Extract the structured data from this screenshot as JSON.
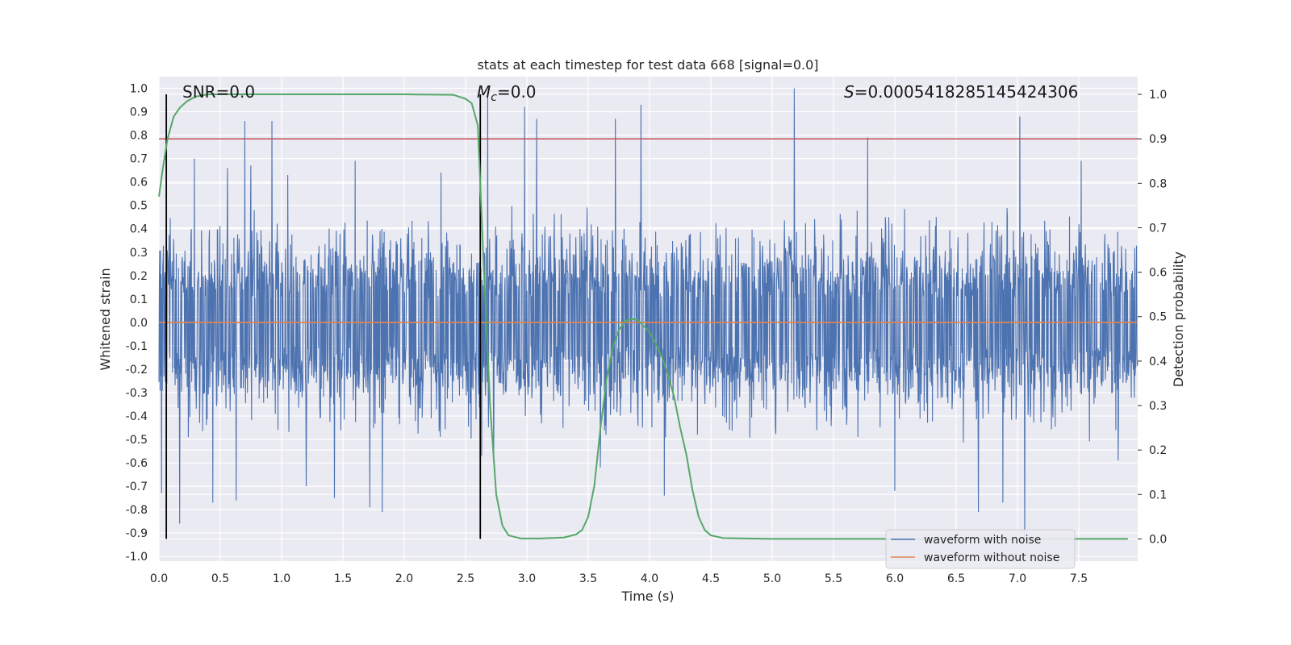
{
  "chart_data": {
    "type": "line",
    "title": "stats at each timestep for test data 668 [signal=0.0]",
    "xlabel": "Time (s)",
    "ylabel_left": "Whitened strain",
    "ylabel_right": "Detection probability",
    "xlim": [
      0.0,
      7.98
    ],
    "ylim_left": [
      -1.02,
      1.05
    ],
    "ylim_right": [
      -0.05,
      1.04
    ],
    "xticks": [
      "0.0",
      "0.5",
      "1.0",
      "1.5",
      "2.0",
      "2.5",
      "3.0",
      "3.5",
      "4.0",
      "4.5",
      "5.0",
      "5.5",
      "6.0",
      "6.5",
      "7.0",
      "7.5"
    ],
    "yticks_left": [
      "-1.0",
      "-0.9",
      "-0.8",
      "-0.7",
      "-0.6",
      "-0.5",
      "-0.4",
      "-0.3",
      "-0.2",
      "-0.1",
      "0.0",
      "0.1",
      "0.2",
      "0.3",
      "0.4",
      "0.5",
      "0.6",
      "0.7",
      "0.8",
      "0.9",
      "1.0"
    ],
    "yticks_right": [
      "0.0",
      "0.1",
      "0.2",
      "0.3",
      "0.4",
      "0.5",
      "0.6",
      "0.7",
      "0.8",
      "0.9",
      "1.0"
    ],
    "grid": true,
    "legend_placement": "lower-right",
    "annotations": {
      "snr": "SNR=0.0",
      "mc_symbol": "M",
      "mc_subscript": "c",
      "mc_value": "=0.0",
      "s_symbol": "S",
      "s_value": "=0.0005418285145424306"
    },
    "series": [
      {
        "name": "waveform with noise",
        "color": "#4c72b0",
        "description_points": "noise envelope approx ±0.4, spikes up to 1.0 and down to -0.9",
        "spikes": [
          [
            0.02,
            -0.73
          ],
          [
            0.17,
            -0.86
          ],
          [
            0.29,
            0.7
          ],
          [
            0.44,
            -0.77
          ],
          [
            0.56,
            0.66
          ],
          [
            0.63,
            -0.76
          ],
          [
            0.7,
            0.86
          ],
          [
            0.75,
            0.67
          ],
          [
            0.92,
            0.86
          ],
          [
            1.05,
            0.63
          ],
          [
            1.2,
            -0.7
          ],
          [
            1.43,
            -0.75
          ],
          [
            1.6,
            0.69
          ],
          [
            1.72,
            -0.79
          ],
          [
            1.82,
            -0.81
          ],
          [
            2.3,
            0.64
          ],
          [
            2.63,
            -0.57
          ],
          [
            2.68,
            0.98
          ],
          [
            2.73,
            -0.57
          ],
          [
            2.98,
            0.92
          ],
          [
            3.08,
            0.87
          ],
          [
            3.6,
            -0.62
          ],
          [
            3.72,
            0.87
          ],
          [
            3.93,
            0.93
          ],
          [
            4.12,
            -0.74
          ],
          [
            5.18,
            1.0
          ],
          [
            5.78,
            0.79
          ],
          [
            6.0,
            -0.72
          ],
          [
            6.68,
            -0.81
          ],
          [
            6.88,
            -0.77
          ],
          [
            7.02,
            0.88
          ],
          [
            7.06,
            -0.92
          ],
          [
            7.52,
            0.69
          ],
          [
            7.82,
            -0.59
          ]
        ]
      },
      {
        "name": "waveform without noise",
        "color": "#dd8452",
        "x": [
          0.0,
          7.98
        ],
        "y": [
          0.0,
          0.0
        ]
      },
      {
        "name": "",
        "axis": "right",
        "color": "#55a868",
        "x": [
          0.0,
          0.03,
          0.07,
          0.12,
          0.17,
          0.23,
          0.3,
          0.4,
          0.6,
          1.0,
          2.0,
          2.4,
          2.5,
          2.55,
          2.6,
          2.65,
          2.7,
          2.75,
          2.8,
          2.85,
          2.95,
          3.1,
          3.3,
          3.4,
          3.45,
          3.5,
          3.55,
          3.6,
          3.65,
          3.7,
          3.75,
          3.8,
          3.85,
          3.9,
          3.95,
          4.0,
          4.05,
          4.1,
          4.15,
          4.2,
          4.25,
          4.3,
          4.35,
          4.4,
          4.45,
          4.5,
          4.6,
          5.0,
          6.0,
          7.0,
          7.9
        ],
        "y": [
          0.77,
          0.83,
          0.9,
          0.95,
          0.97,
          0.985,
          0.995,
          1.0,
          1.0,
          1.0,
          1.0,
          0.999,
          0.99,
          0.98,
          0.93,
          0.6,
          0.3,
          0.1,
          0.03,
          0.008,
          0.001,
          0.001,
          0.003,
          0.01,
          0.02,
          0.05,
          0.12,
          0.25,
          0.36,
          0.43,
          0.47,
          0.49,
          0.495,
          0.493,
          0.48,
          0.465,
          0.44,
          0.41,
          0.37,
          0.32,
          0.25,
          0.19,
          0.11,
          0.05,
          0.02,
          0.008,
          0.002,
          0.0,
          0.0,
          0.0,
          0.0
        ]
      }
    ],
    "hlines": [
      {
        "axis": "right",
        "y": 0.9,
        "color": "#c44e52"
      }
    ],
    "vlines": [
      {
        "x": 0.06,
        "color": "#000000"
      },
      {
        "x": 2.62,
        "color": "#000000"
      }
    ]
  }
}
